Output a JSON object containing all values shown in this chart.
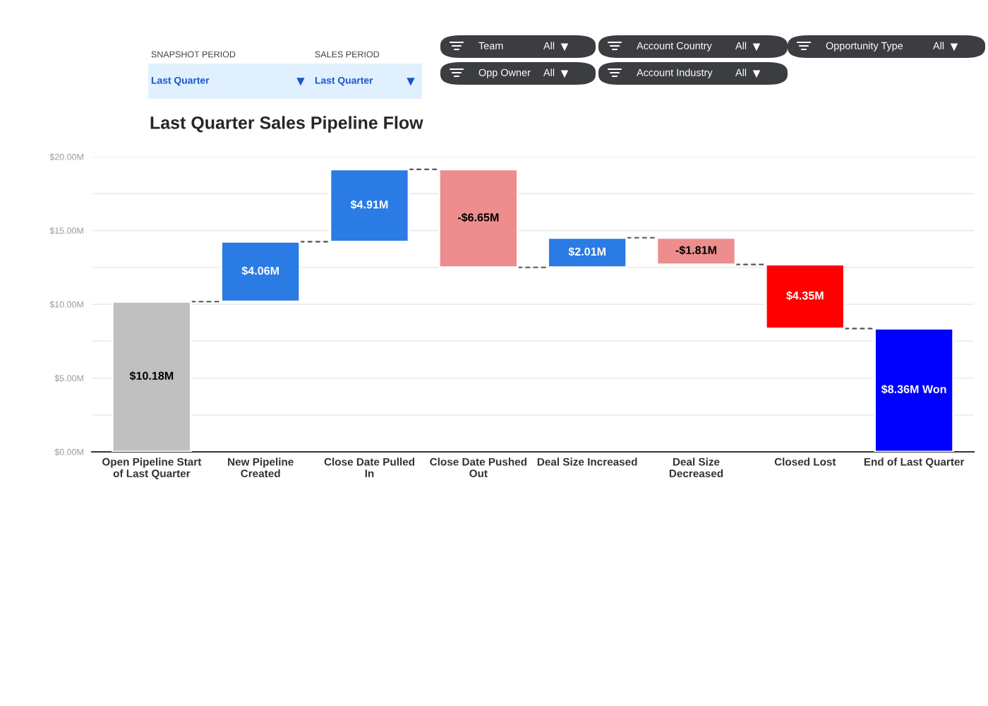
{
  "chart_data": {
    "type": "bar",
    "title": "Last Quarter Sales Pipeline Flow",
    "categories": [
      "Open Pipeline Start\nof Last Quarter",
      "New Pipeline\nCreated",
      "Close Date Pulled\nIn",
      "Close Date Pushed\nOut",
      "Deal Size Increased",
      "Deal Size\nDecreased",
      "Closed Lost",
      "End of Last Quarter"
    ],
    "values": [
      10.18,
      4.06,
      4.91,
      -6.65,
      2.01,
      -1.81,
      4.35,
      8.36
    ],
    "base": [
      0,
      10.18,
      14.24,
      19.15,
      12.5,
      14.51,
      8.35,
      0
    ],
    "colors": [
      "#c0c0c0",
      "#2a7be4",
      "#2a7be4",
      "#ed8d8d",
      "#2a7be4",
      "#ed8d8d",
      "#ff0000",
      "#0000ff"
    ],
    "value_labels": [
      "$10.18M",
      "$4.06M",
      "$4.91M",
      "-$6.65M",
      "$2.01M",
      "-$1.81M",
      "$4.35M",
      "$8.36M Won"
    ],
    "ylim": [
      0,
      20
    ],
    "yticks": [
      {
        "value": 0,
        "label": "$0.00M"
      },
      {
        "value": 2.5,
        "label": null
      },
      {
        "value": 5,
        "label": "$5.00M"
      },
      {
        "value": 7.5,
        "label": null
      },
      {
        "value": 10,
        "label": "$10.00M"
      },
      {
        "value": 12.5,
        "label": null
      },
      {
        "value": 15,
        "label": "$15.00M"
      },
      {
        "value": 17.5,
        "label": null
      },
      {
        "value": 20,
        "label": "$20.00M"
      }
    ],
    "grid": "y",
    "legend": false,
    "annotations": [
      "SNAPSHOT PERIOD",
      "Last Quarter",
      "SALES PERIOD",
      "Last Quarter",
      "Team",
      "All",
      "Account Country",
      "All",
      "Opportunity Type",
      "All",
      "Opp Owner",
      "All",
      "Account Industry",
      "All"
    ]
  }
}
